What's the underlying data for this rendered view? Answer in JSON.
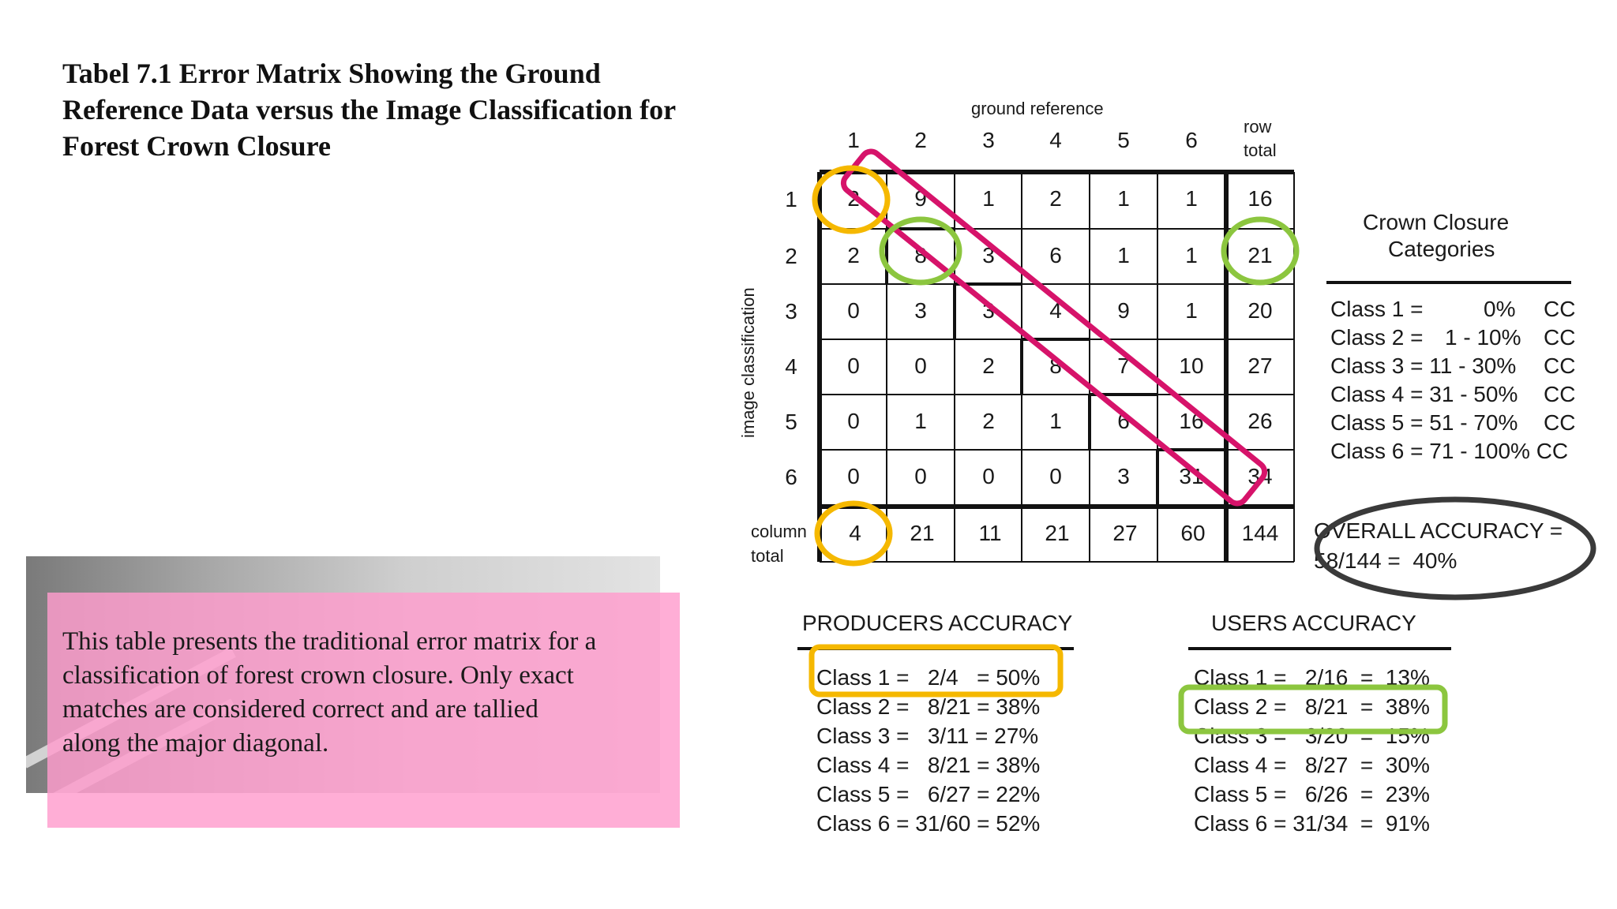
{
  "title": "Tabel 7.1 Error Matrix Showing the Ground Reference Data versus the Image Classification for Forest Crown Closure",
  "caption": "This table presents the traditional error matrix for a classification of forest crown closure. Only exact matches are considered correct and are tallied along the major diagonal.",
  "figure": {
    "ground_reference_label": "ground reference",
    "image_classification_label": "image classification",
    "row_total_label_1": "row",
    "row_total_label_2": "total",
    "column_total_label_1": "column",
    "column_total_label_2": "total",
    "column_headers": [
      "1",
      "2",
      "3",
      "4",
      "5",
      "6"
    ],
    "row_headers": [
      "1",
      "2",
      "3",
      "4",
      "5",
      "6"
    ],
    "rows": [
      [
        2,
        9,
        1,
        2,
        1,
        1
      ],
      [
        2,
        8,
        3,
        6,
        1,
        1
      ],
      [
        0,
        3,
        3,
        4,
        9,
        1
      ],
      [
        0,
        0,
        2,
        8,
        7,
        10
      ],
      [
        0,
        1,
        2,
        1,
        6,
        16
      ],
      [
        0,
        0,
        0,
        0,
        3,
        31
      ]
    ],
    "row_totals": [
      16,
      21,
      20,
      27,
      26,
      34
    ],
    "column_totals": [
      4,
      21,
      11,
      21,
      27,
      60
    ],
    "grand_total": 144,
    "categories_title_1": "Crown Closure",
    "categories_title_2": "Categories",
    "categories": [
      {
        "cls": "Class 1 =",
        "range": "0%",
        "unit": "CC"
      },
      {
        "cls": "Class 2 =",
        "range": "1 - 10%",
        "unit": "CC"
      },
      {
        "cls": "Class 3 = 11 - 30%",
        "range": "",
        "unit": "CC"
      },
      {
        "cls": "Class 4 = 31 - 50%",
        "range": "",
        "unit": "CC"
      },
      {
        "cls": "Class 5 = 51 - 70%",
        "range": "",
        "unit": "CC"
      },
      {
        "cls": "Class 6 = 71 - 100% CC",
        "range": "",
        "unit": ""
      }
    ],
    "overall_accuracy_1": "OVERALL ACCURACY =",
    "overall_accuracy_2": "58/144 =  40%",
    "producers_title": "PRODUCERS ACCURACY",
    "producers": [
      "Class 1 =   2/4   = 50%",
      "Class 2 =   8/21 = 38%",
      "Class 3 =   3/11 = 27%",
      "Class 4 =   8/21 = 38%",
      "Class 5 =   6/27 = 22%",
      "Class 6 = 31/60 = 52%"
    ],
    "users_title": "USERS ACCURACY",
    "users": [
      "Class 1 =   2/16  =  13%",
      "Class 2 =   8/21  =  38%",
      "Class 3 =   3/20  =  15%",
      "Class 4 =   8/27  =  30%",
      "Class 5 =   6/26  =  23%",
      "Class 6 = 31/34  =  91%"
    ]
  },
  "colors": {
    "caption_box": "#ff9ccd",
    "diagonal_highlight": "#d6136a",
    "producer_highlight": "#f5b800",
    "user_highlight": "#8cc63f",
    "overall_highlight": "#3a3a3a"
  }
}
